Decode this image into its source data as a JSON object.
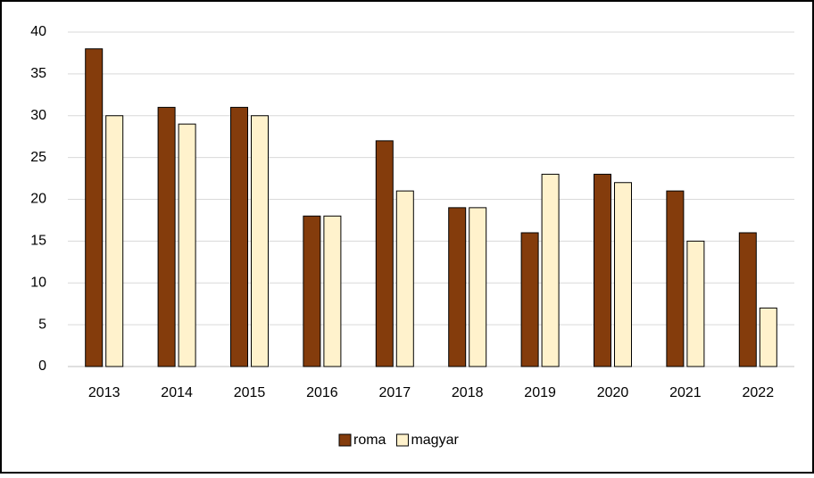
{
  "chart_data": {
    "type": "bar",
    "categories": [
      "2013",
      "2014",
      "2015",
      "2016",
      "2017",
      "2018",
      "2019",
      "2020",
      "2021",
      "2022"
    ],
    "series": [
      {
        "name": "roma",
        "color": "#843c0c",
        "values": [
          38,
          31,
          31,
          18,
          27,
          19,
          16,
          23,
          21,
          16
        ]
      },
      {
        "name": "magyar",
        "color": "#fff2cc",
        "values": [
          30,
          29,
          30,
          18,
          21,
          19,
          23,
          22,
          15,
          7
        ]
      }
    ],
    "ylim": [
      0,
      40
    ],
    "yticks": [
      0,
      5,
      10,
      15,
      20,
      25,
      30,
      35,
      40
    ],
    "grid": true,
    "legend": "bottom"
  }
}
